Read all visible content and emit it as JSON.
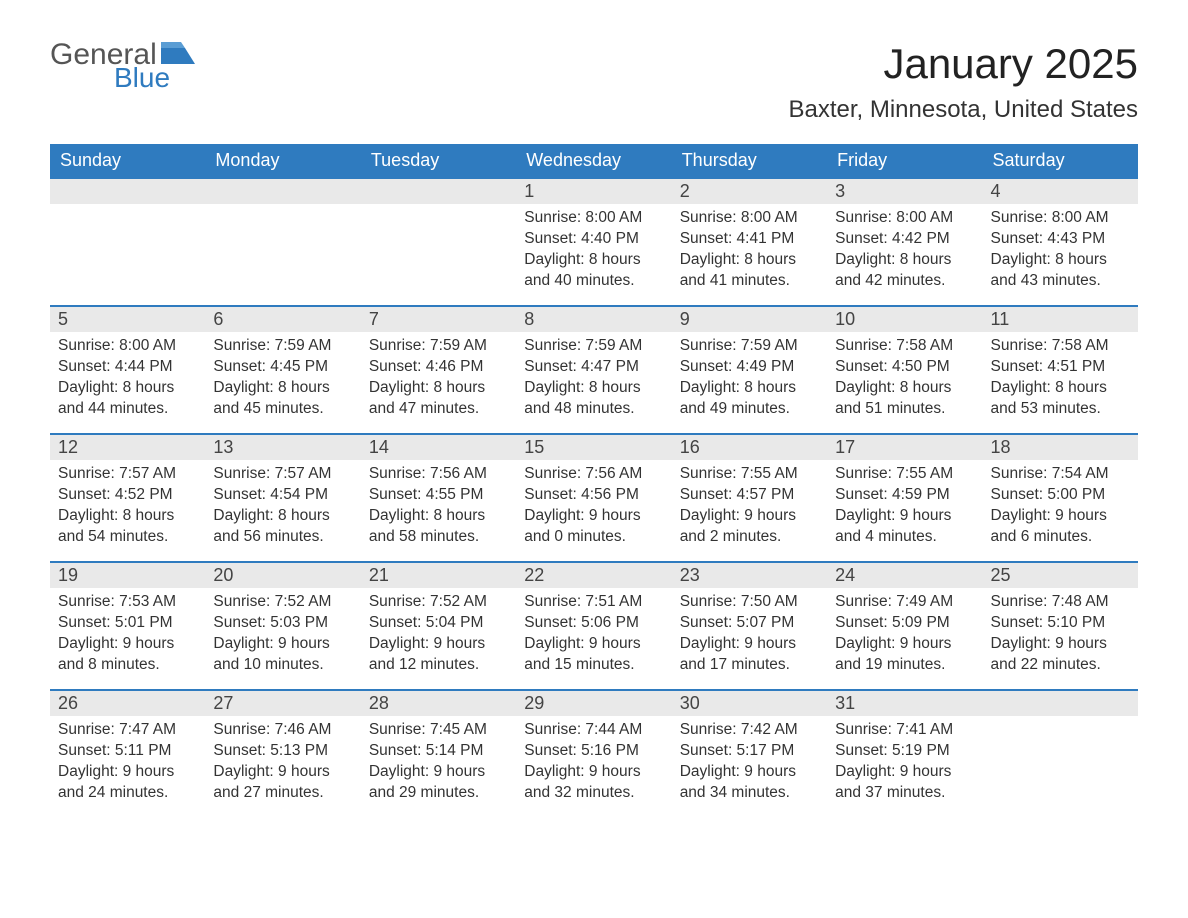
{
  "brand": {
    "general": "General",
    "blue": "Blue",
    "flag_color": "#2f7bbf"
  },
  "title": "January 2025",
  "location": "Baxter, Minnesota, United States",
  "colors": {
    "header_bg": "#2f7bbf",
    "header_text": "#ffffff",
    "daynum_bg": "#e9e9e9",
    "row_border": "#2f7bbf",
    "body_text": "#333333",
    "page_bg": "#ffffff"
  },
  "weekdays": [
    "Sunday",
    "Monday",
    "Tuesday",
    "Wednesday",
    "Thursday",
    "Friday",
    "Saturday"
  ],
  "labels": {
    "sunrise": "Sunrise:",
    "sunset": "Sunset:",
    "daylight": "Daylight:"
  },
  "weeks": [
    [
      null,
      null,
      null,
      {
        "day": "1",
        "sunrise": "8:00 AM",
        "sunset": "4:40 PM",
        "daylight": "8 hours and 40 minutes."
      },
      {
        "day": "2",
        "sunrise": "8:00 AM",
        "sunset": "4:41 PM",
        "daylight": "8 hours and 41 minutes."
      },
      {
        "day": "3",
        "sunrise": "8:00 AM",
        "sunset": "4:42 PM",
        "daylight": "8 hours and 42 minutes."
      },
      {
        "day": "4",
        "sunrise": "8:00 AM",
        "sunset": "4:43 PM",
        "daylight": "8 hours and 43 minutes."
      }
    ],
    [
      {
        "day": "5",
        "sunrise": "8:00 AM",
        "sunset": "4:44 PM",
        "daylight": "8 hours and 44 minutes."
      },
      {
        "day": "6",
        "sunrise": "7:59 AM",
        "sunset": "4:45 PM",
        "daylight": "8 hours and 45 minutes."
      },
      {
        "day": "7",
        "sunrise": "7:59 AM",
        "sunset": "4:46 PM",
        "daylight": "8 hours and 47 minutes."
      },
      {
        "day": "8",
        "sunrise": "7:59 AM",
        "sunset": "4:47 PM",
        "daylight": "8 hours and 48 minutes."
      },
      {
        "day": "9",
        "sunrise": "7:59 AM",
        "sunset": "4:49 PM",
        "daylight": "8 hours and 49 minutes."
      },
      {
        "day": "10",
        "sunrise": "7:58 AM",
        "sunset": "4:50 PM",
        "daylight": "8 hours and 51 minutes."
      },
      {
        "day": "11",
        "sunrise": "7:58 AM",
        "sunset": "4:51 PM",
        "daylight": "8 hours and 53 minutes."
      }
    ],
    [
      {
        "day": "12",
        "sunrise": "7:57 AM",
        "sunset": "4:52 PM",
        "daylight": "8 hours and 54 minutes."
      },
      {
        "day": "13",
        "sunrise": "7:57 AM",
        "sunset": "4:54 PM",
        "daylight": "8 hours and 56 minutes."
      },
      {
        "day": "14",
        "sunrise": "7:56 AM",
        "sunset": "4:55 PM",
        "daylight": "8 hours and 58 minutes."
      },
      {
        "day": "15",
        "sunrise": "7:56 AM",
        "sunset": "4:56 PM",
        "daylight": "9 hours and 0 minutes."
      },
      {
        "day": "16",
        "sunrise": "7:55 AM",
        "sunset": "4:57 PM",
        "daylight": "9 hours and 2 minutes."
      },
      {
        "day": "17",
        "sunrise": "7:55 AM",
        "sunset": "4:59 PM",
        "daylight": "9 hours and 4 minutes."
      },
      {
        "day": "18",
        "sunrise": "7:54 AM",
        "sunset": "5:00 PM",
        "daylight": "9 hours and 6 minutes."
      }
    ],
    [
      {
        "day": "19",
        "sunrise": "7:53 AM",
        "sunset": "5:01 PM",
        "daylight": "9 hours and 8 minutes."
      },
      {
        "day": "20",
        "sunrise": "7:52 AM",
        "sunset": "5:03 PM",
        "daylight": "9 hours and 10 minutes."
      },
      {
        "day": "21",
        "sunrise": "7:52 AM",
        "sunset": "5:04 PM",
        "daylight": "9 hours and 12 minutes."
      },
      {
        "day": "22",
        "sunrise": "7:51 AM",
        "sunset": "5:06 PM",
        "daylight": "9 hours and 15 minutes."
      },
      {
        "day": "23",
        "sunrise": "7:50 AM",
        "sunset": "5:07 PM",
        "daylight": "9 hours and 17 minutes."
      },
      {
        "day": "24",
        "sunrise": "7:49 AM",
        "sunset": "5:09 PM",
        "daylight": "9 hours and 19 minutes."
      },
      {
        "day": "25",
        "sunrise": "7:48 AM",
        "sunset": "5:10 PM",
        "daylight": "9 hours and 22 minutes."
      }
    ],
    [
      {
        "day": "26",
        "sunrise": "7:47 AM",
        "sunset": "5:11 PM",
        "daylight": "9 hours and 24 minutes."
      },
      {
        "day": "27",
        "sunrise": "7:46 AM",
        "sunset": "5:13 PM",
        "daylight": "9 hours and 27 minutes."
      },
      {
        "day": "28",
        "sunrise": "7:45 AM",
        "sunset": "5:14 PM",
        "daylight": "9 hours and 29 minutes."
      },
      {
        "day": "29",
        "sunrise": "7:44 AM",
        "sunset": "5:16 PM",
        "daylight": "9 hours and 32 minutes."
      },
      {
        "day": "30",
        "sunrise": "7:42 AM",
        "sunset": "5:17 PM",
        "daylight": "9 hours and 34 minutes."
      },
      {
        "day": "31",
        "sunrise": "7:41 AM",
        "sunset": "5:19 PM",
        "daylight": "9 hours and 37 minutes."
      },
      null
    ]
  ]
}
